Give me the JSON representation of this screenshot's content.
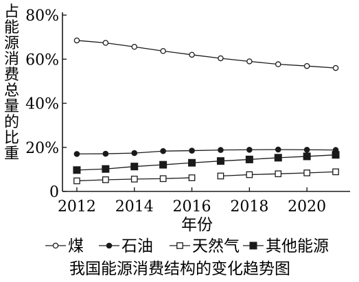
{
  "chart_data": {
    "type": "line",
    "ylabel": "占能源消费总量的比重",
    "xlabel": "年份",
    "caption": "我国能源消费结构的变化趋势图",
    "x": [
      2012,
      2013,
      2014,
      2015,
      2016,
      2017,
      2018,
      2019,
      2020,
      2021
    ],
    "x_ticks": [
      "2012",
      "2014",
      "2016",
      "2018",
      "2020"
    ],
    "x_tick_values": [
      2012,
      2014,
      2016,
      2018,
      2020
    ],
    "y_ticks": [
      "0",
      "20%",
      "40%",
      "60%",
      "80%"
    ],
    "y_tick_values": [
      0,
      20,
      40,
      60,
      80
    ],
    "ylim": [
      0,
      80
    ],
    "xlim": [
      2011.5,
      2021.5
    ],
    "grid": false,
    "legend_position": "bottom",
    "series": [
      {
        "name": "煤",
        "marker": "open-circle",
        "values": [
          68.5,
          67.4,
          65.6,
          63.7,
          62.0,
          60.4,
          59.0,
          57.7,
          56.9,
          56.0
        ]
      },
      {
        "name": "石油",
        "marker": "filled-circle",
        "values": [
          17.0,
          17.1,
          17.4,
          18.3,
          18.5,
          18.8,
          18.9,
          19.0,
          18.9,
          18.8
        ]
      },
      {
        "name": "天然气",
        "marker": "open-square",
        "break_after": 2016,
        "values": [
          4.8,
          5.3,
          5.6,
          5.8,
          6.2,
          7.0,
          7.6,
          8.0,
          8.4,
          8.9
        ]
      },
      {
        "name": "其他能源",
        "marker": "filled-square",
        "values": [
          9.7,
          10.2,
          11.3,
          12.1,
          13.0,
          13.8,
          14.5,
          15.3,
          15.9,
          16.6
        ]
      }
    ]
  }
}
